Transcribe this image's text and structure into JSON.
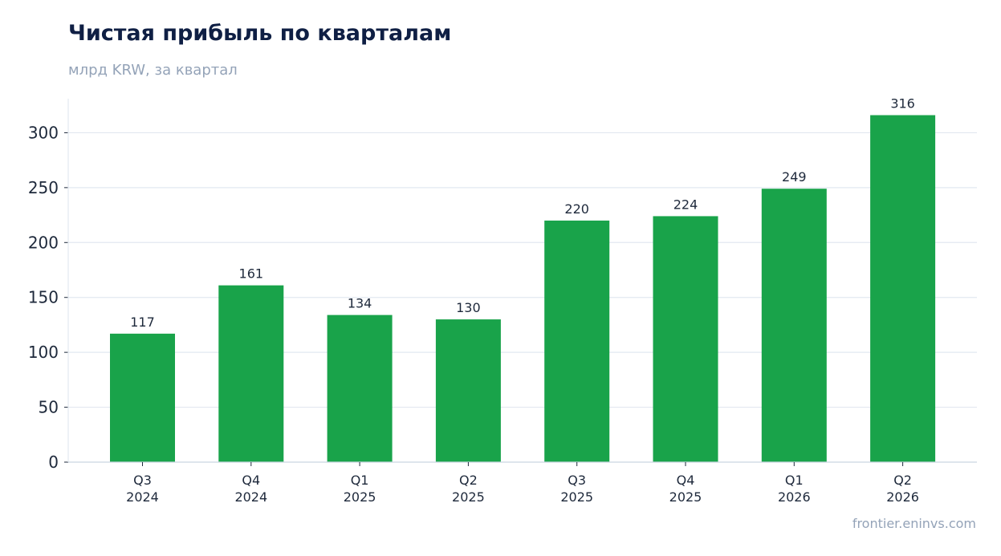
{
  "title": "Чистая прибыль по кварталам",
  "subtitle": "млрд KRW, за квартал",
  "source": "frontier.eninvs.com",
  "colors": {
    "bar": "#19a34a",
    "title": "#0f1f44",
    "muted": "#94a3b8",
    "grid": "#e2e8f0",
    "text": "#1e293b"
  },
  "chart_data": {
    "type": "bar",
    "categories": [
      [
        "Q3",
        "2024"
      ],
      [
        "Q4",
        "2024"
      ],
      [
        "Q1",
        "2025"
      ],
      [
        "Q2",
        "2025"
      ],
      [
        "Q3",
        "2025"
      ],
      [
        "Q4",
        "2025"
      ],
      [
        "Q1",
        "2026"
      ],
      [
        "Q2",
        "2026"
      ]
    ],
    "values": [
      117,
      161,
      134,
      130,
      220,
      224,
      249,
      316
    ],
    "data_labels": [
      "117",
      "161",
      "134",
      "130",
      "220",
      "224",
      "249",
      "316"
    ],
    "yticks": [
      0,
      50,
      100,
      150,
      200,
      250,
      300
    ],
    "ylim": [
      0,
      331
    ],
    "grid": "horizontal",
    "legend": "none"
  }
}
